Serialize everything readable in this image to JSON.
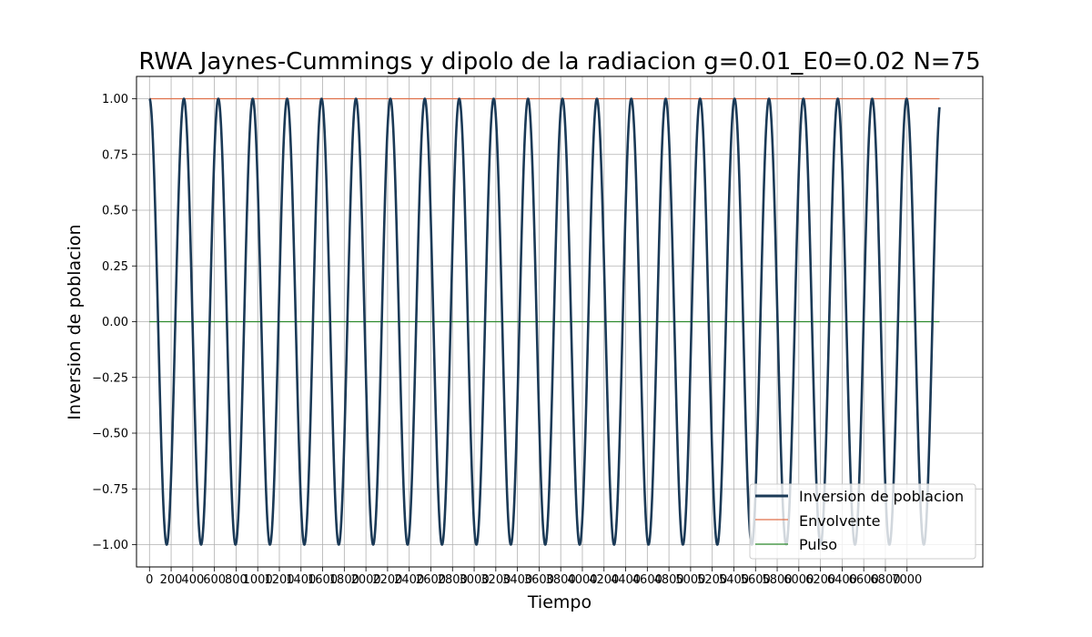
{
  "chart_data": {
    "type": "line",
    "title": "RWA Jaynes-Cummings y dipolo de la radiacion g=0.01_E0=0.02 N=75",
    "xlabel": "Tiempo",
    "ylabel": "Inversion de poblacion",
    "xlim": [
      -120,
      7700
    ],
    "ylim": [
      -1.1,
      1.1
    ],
    "x_range": [
      0,
      7300
    ],
    "xticks": [
      0,
      200,
      400,
      600,
      800,
      1000,
      1200,
      1400,
      1600,
      1800,
      2000,
      2200,
      2400,
      2600,
      2800,
      3000,
      3200,
      3400,
      3600,
      3800,
      4000,
      4200,
      4400,
      4600,
      4800,
      5000,
      5200,
      5400,
      5600,
      5800,
      6000,
      6200,
      6400,
      6600,
      6800,
      7000
    ],
    "xtick_labels": [
      "0",
      "200",
      "400",
      "600",
      "800",
      "1000",
      "1200",
      "1400",
      "1600",
      "1800",
      "2000",
      "2200",
      "2400",
      "2600",
      "2800",
      "3000",
      "3200",
      "3400",
      "3600",
      "3800",
      "4000",
      "4200",
      "4400",
      "4600",
      "4800",
      "5000",
      "5200",
      "5400",
      "5600",
      "5800",
      "6000",
      "6200",
      "6400",
      "6600",
      "6800",
      "7000"
    ],
    "yticks": [
      1.0,
      0.75,
      0.5,
      0.25,
      0.0,
      -0.25,
      -0.5,
      -0.75,
      -1.0
    ],
    "ytick_labels": [
      "1.00",
      "0.75",
      "0.50",
      "0.25",
      "0.00",
      "−0.25",
      "−0.50",
      "−0.75",
      "−1.00"
    ],
    "grid": true,
    "legend_position": "bottom-right",
    "series": [
      {
        "name": "Inversion de poblacion",
        "color": "#1b3a57",
        "kind": "cosine",
        "amplitude": 1.0,
        "period": 318.0,
        "x_start": 0,
        "x_end": 7300
      },
      {
        "name": "Envolvente",
        "color": "#e0704a",
        "kind": "constant",
        "value": 1.0,
        "x_start": 0,
        "x_end": 7300
      },
      {
        "name": "Pulso",
        "color": "#2e8b2e",
        "kind": "constant",
        "value": 0.0,
        "x_start": 0,
        "x_end": 7300
      }
    ]
  }
}
